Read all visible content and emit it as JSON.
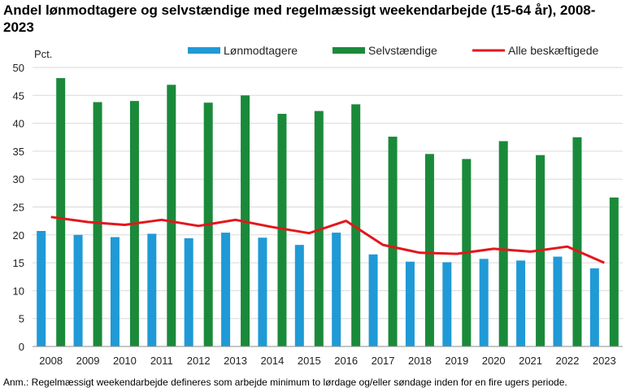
{
  "title": "Andel lønmodtagere og selvstændige med regelmæssigt weekendarbejde (15-64 år), 2008-2023",
  "note": "Anm.: Regelmæssigt weekendarbejde defineres som arbejde minimum to lørdage og/eller søndage inden for en fire ugers periode.",
  "chart_data": {
    "type": "bar",
    "title": "Andel lønmodtagere og selvstændige med regelmæssigt weekendarbejde (15-64 år), 2008-2023",
    "ylabel": "Pct.",
    "xlabel": "",
    "ylim": [
      0,
      50
    ],
    "yticks": [
      0,
      5,
      10,
      15,
      20,
      25,
      30,
      35,
      40,
      45,
      50
    ],
    "grid": "horizontal",
    "legend": "top",
    "categories": [
      "2008",
      "2009",
      "2010",
      "2011",
      "2012",
      "2013",
      "2014",
      "2015",
      "2016",
      "2017",
      "2018",
      "2019",
      "2020",
      "2021",
      "2022",
      "2023"
    ],
    "series": [
      {
        "name": "Lønmodtagere",
        "type": "bar",
        "color": "#1f9ad6",
        "values": [
          20.7,
          20.0,
          19.6,
          20.2,
          19.4,
          20.4,
          19.5,
          18.2,
          20.4,
          16.5,
          15.2,
          15.1,
          15.7,
          15.4,
          16.1,
          14.0
        ]
      },
      {
        "name": "Selvstændige",
        "type": "bar",
        "color": "#1a8a3a",
        "values": [
          48.1,
          43.8,
          44.0,
          46.9,
          43.7,
          45.0,
          41.7,
          42.2,
          43.4,
          37.6,
          34.5,
          33.6,
          36.8,
          34.3,
          37.5,
          26.7
        ]
      },
      {
        "name": "Alle beskæftigede",
        "type": "line",
        "color": "#e3171c",
        "values": [
          23.2,
          22.3,
          21.8,
          22.7,
          21.6,
          22.7,
          21.4,
          20.3,
          22.5,
          18.2,
          16.8,
          16.6,
          17.5,
          17.0,
          17.9,
          15.0
        ]
      }
    ]
  }
}
